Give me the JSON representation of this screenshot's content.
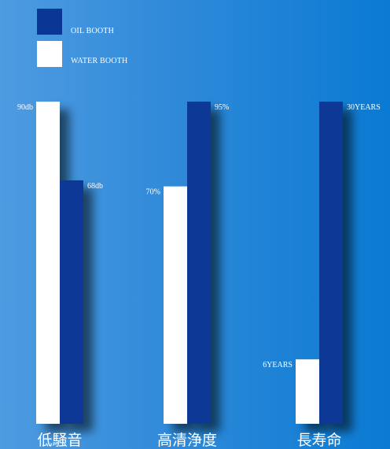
{
  "colors": {
    "oil": "#0a3795",
    "water": "#ffffff"
  },
  "legend": [
    {
      "label": "OIL BOOTH",
      "color": "#0a3795"
    },
    {
      "label": "WATER BOOTH",
      "color": "#ffffff"
    }
  ],
  "chart_data": {
    "type": "bar",
    "categories": [
      "低騒音",
      "高清浄度",
      "長寿命"
    ],
    "series": [
      {
        "name": "WATER BOOTH",
        "values": [
          90,
          70,
          6
        ]
      },
      {
        "name": "OIL BOOTH",
        "values": [
          68,
          95,
          30
        ]
      }
    ],
    "data_labels": [
      [
        "90db",
        "68db"
      ],
      [
        "70%",
        "95%"
      ],
      [
        "6YEARS",
        "30YEARS"
      ]
    ],
    "group_maxima": [
      90,
      95,
      30
    ],
    "grid": false,
    "legend_position": "top-left"
  }
}
